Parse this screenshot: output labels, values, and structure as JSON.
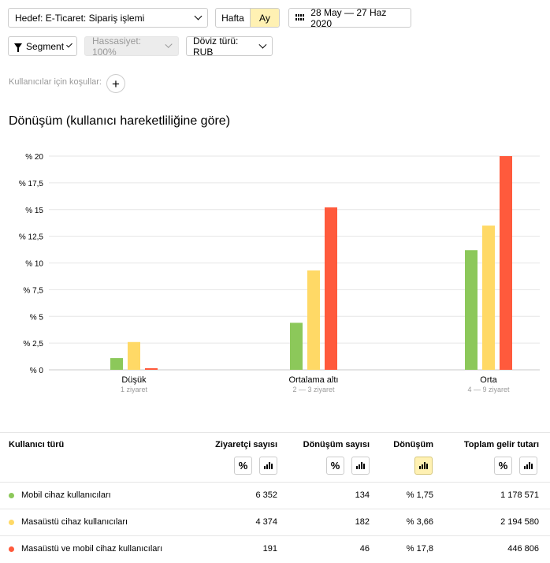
{
  "toolbar": {
    "goal": "Hedef: E-Ticaret: Sipariş işlemi",
    "period_week": "Hafta",
    "period_month": "Ay",
    "date_range": "28 May — 27 Haz 2020",
    "segment": "Segment",
    "accuracy": "Hassasiyet: 100%",
    "currency": "Döviz türü: RUB"
  },
  "conditions": {
    "label": "Kullanıcılar için koşullar:",
    "add_icon": "+"
  },
  "chart": {
    "title": "Dönüşüm (kullanıcı hareketliliğine göre)"
  },
  "chart_data": {
    "type": "bar",
    "title": "Dönüşüm (kullanıcı hareketliliğine göre)",
    "categories": [
      "Düşük",
      "Ortalama altı",
      "Orta"
    ],
    "category_sublabels": [
      "1 ziyaret",
      "2 — 3 ziyaret",
      "4 — 9 ziyaret"
    ],
    "ylim": [
      0,
      20
    ],
    "yticks": [
      0,
      2.5,
      5,
      7.5,
      10,
      12.5,
      15,
      17.5,
      20
    ],
    "ytick_labels": [
      "% 0",
      "% 2,5",
      "% 5",
      "% 7,5",
      "% 10",
      "% 12,5",
      "% 15",
      "% 17,5",
      "% 20"
    ],
    "grid": true,
    "series": [
      {
        "color": "#8cc85a",
        "values": [
          1.1,
          4.4,
          11.2
        ]
      },
      {
        "color": "#ffd966",
        "values": [
          2.6,
          9.3,
          13.5
        ]
      },
      {
        "color": "#ff5a3c",
        "values": [
          0.15,
          15.2,
          20
        ]
      }
    ]
  },
  "table": {
    "headers": {
      "type": "Kullanıcı türü",
      "visitors": "Ziyaretçi sayısı",
      "conversions": "Dönüşüm sayısı",
      "conversion_rate": "Dönüşüm",
      "revenue": "Toplam gelir tutarı"
    },
    "percent_symbol": "%",
    "rows": [
      {
        "color": "#8cc85a",
        "type": "Mobil cihaz kullanıcıları",
        "visitors": "6 352",
        "conversions": "134",
        "rate": "% 1,75",
        "revenue": "1 178 571"
      },
      {
        "color": "#ffd966",
        "type": "Masaüstü cihaz kullanıcıları",
        "visitors": "4 374",
        "conversions": "182",
        "rate": "% 3,66",
        "revenue": "2 194 580"
      },
      {
        "color": "#ff5a3c",
        "type": "Masaüstü ve mobil cihaz kullanıcıları",
        "visitors": "191",
        "conversions": "46",
        "rate": "% 17,8",
        "revenue": "446 806"
      }
    ]
  }
}
